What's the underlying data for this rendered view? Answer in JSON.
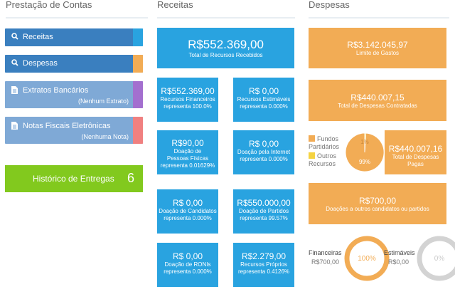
{
  "left": {
    "heading": "Prestação de Contas",
    "receitas_label": "Receitas",
    "despesas_label": "Despesas",
    "extratos_label": "Extratos Bancários",
    "extratos_sub": "(Nenhum Extrato)",
    "notas_label": "Notas Fiscais Eletrônicas",
    "notas_sub": "(Nenhuma Nota)",
    "historico_label": "Histórico de Entregas",
    "historico_count": "6"
  },
  "receitas": {
    "heading": "Receitas",
    "total_value": "R$552.369,00",
    "total_label": "Total de Recursos Recebidos",
    "tiles": [
      {
        "value": "R$552.369,00",
        "line1": "Recursos Financeiros",
        "line2": "representa 100.0%"
      },
      {
        "value": "R$ 0,00",
        "line1": "Recursos Estimáveis",
        "line2": "representa 0.000%"
      },
      {
        "value": "R$90,00",
        "line1": "Doação de Pessoas Físicas",
        "line2": "representa 0.01629%"
      },
      {
        "value": "R$ 0,00",
        "line1": "Doação pela Internet",
        "line2": "representa 0.000%"
      },
      {
        "value": "R$ 0,00",
        "line1": "Doação de Candidatos",
        "line2": "representa 0.000%"
      },
      {
        "value": "R$550.000,00",
        "line1": "Doação de Partidos",
        "line2": "representa 99.57%"
      },
      {
        "value": "R$ 0,00",
        "line1": "Doação de RONIs",
        "line2": "representa 0.000%"
      },
      {
        "value": "R$2.279,00",
        "line1": "Recursos Próprios",
        "line2": "representa 0.4126%"
      }
    ]
  },
  "despesas": {
    "heading": "Despesas",
    "limite_value": "R$3.142.045,97",
    "limite_label": "Limite de Gastos",
    "contratadas_value": "R$440.007,15",
    "contratadas_label": "Total de Despesas Contratadas",
    "pagas_value": "R$440.007,16",
    "pagas_label": "Total de Despesas Pagas",
    "outros_value": "R$700,00",
    "outros_label": "Doações a outros candidatos ou partidos",
    "legend_fundos": "Fundos Partidários",
    "legend_outros": "Outros Recursos",
    "pie": {
      "fundos_pct": 99,
      "outros_pct": 1,
      "fundos_label": "99%",
      "outros_label": "1%"
    },
    "financeiras_label": "Financeiras",
    "financeiras_value": "R$700,00",
    "financeiras_pct": "100%",
    "estimaveis_label": "Estimáveis",
    "estimaveis_value": "R$0,00",
    "estimaveis_pct": "0%"
  },
  "colors": {
    "blue_tile": "#29a3e0",
    "nav_blue": "#3a7fbf",
    "nav_light": "#7fa9d6",
    "orange": "#f2ac55",
    "green": "#82c91e",
    "purple": "#a36fcf",
    "pink": "#f08080",
    "gray_ring": "#d3d3d3",
    "yellow": "#f5d342"
  }
}
